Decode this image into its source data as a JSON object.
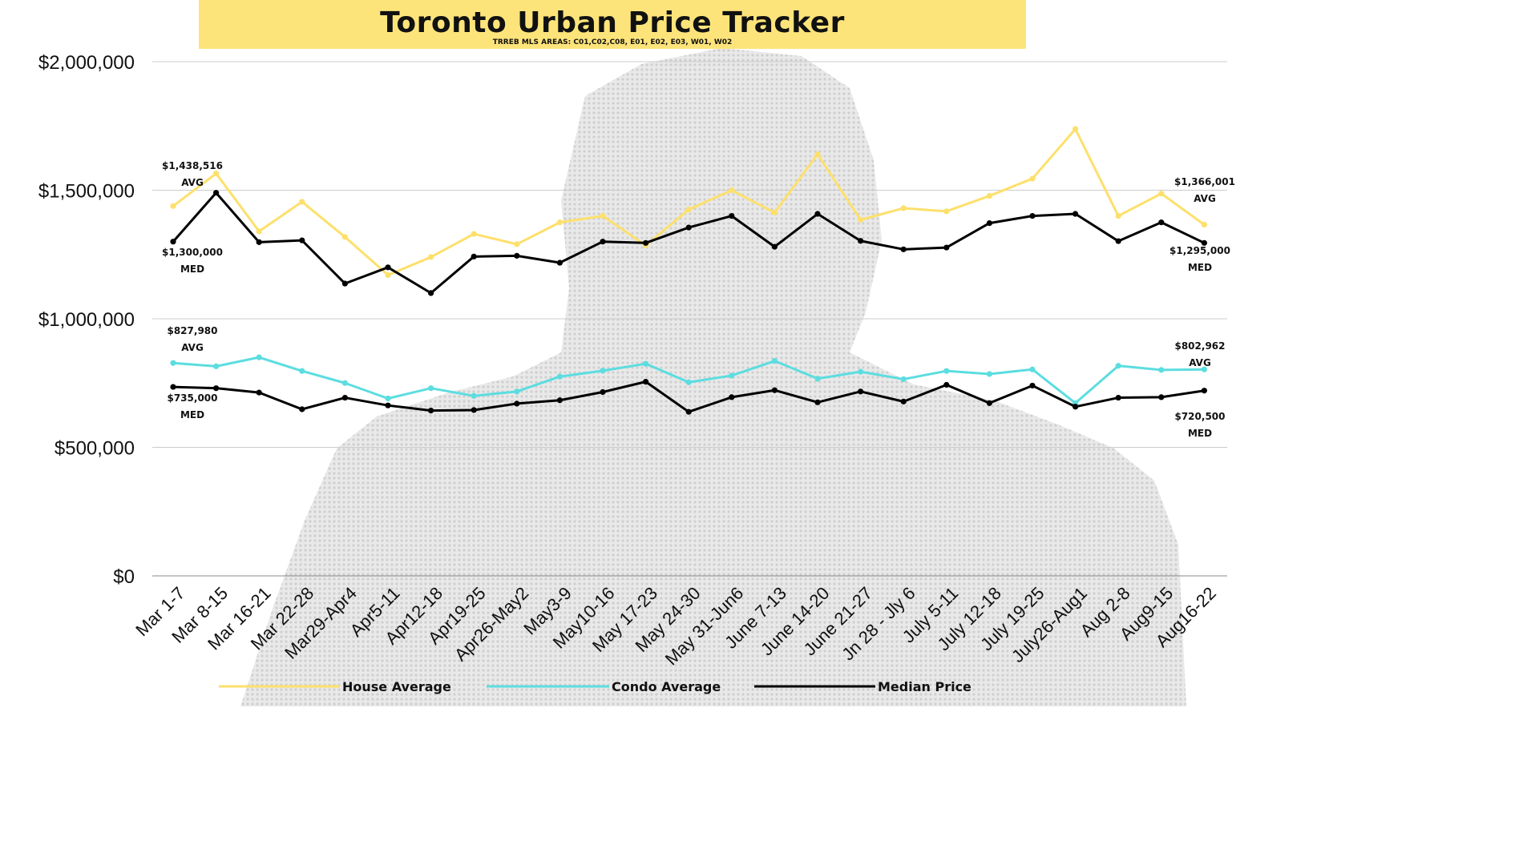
{
  "title": "Toronto Urban Price Tracker",
  "subtitle": "TRREB MLS AREAS: C01,C02,C08, E01, E02, E03, W01, W02",
  "chart_data": {
    "type": "line",
    "ylim": [
      0,
      2000000
    ],
    "yticks": [
      0,
      500000,
      1000000,
      1500000,
      2000000
    ],
    "ytick_labels": [
      "$0",
      "$500,000",
      "$1,000,000",
      "$1,500,000",
      "$2,000,000"
    ],
    "grid": true,
    "legend_position": "bottom",
    "categories": [
      "Mar 1-7",
      "Mar 8-15",
      "Mar 16-21",
      "Mar 22-28",
      "Mar29-Apr4",
      "Apr5-11",
      "Apr12-18",
      "Apr19-25",
      "Apr26-May2",
      "May3-9",
      "May10-16",
      "May 17-23",
      "May 24-30",
      "May 31-Jun6",
      "June 7-13",
      "June 14-20",
      "June 21-27",
      "Jn 28 - Jly 6",
      "July 5-11",
      "July 12-18",
      "July 19-25",
      "July26-Aug1",
      "Aug 2-8",
      "Aug9-15",
      "Aug16-22"
    ],
    "series": [
      {
        "name": "House Average",
        "color": "#fde06c",
        "values": [
          1438516,
          1565000,
          1340000,
          1455000,
          1318000,
          1170000,
          1240000,
          1330000,
          1290000,
          1375000,
          1400000,
          1285000,
          1425000,
          1500000,
          1413000,
          1640000,
          1385000,
          1430000,
          1418000,
          1478000,
          1545000,
          1738000,
          1400000,
          1487000,
          1366001
        ]
      },
      {
        "name": "Condo Average",
        "color": "#5cdde0",
        "values": [
          827980,
          815000,
          850000,
          797000,
          750000,
          690000,
          730000,
          700000,
          717000,
          775000,
          798000,
          825000,
          753000,
          779000,
          836000,
          767000,
          794000,
          765000,
          797000,
          785000,
          803000,
          672000,
          817000,
          801000,
          802962
        ]
      },
      {
        "name": "Median Price",
        "color": "#000000",
        "values": [
          1300000,
          1490000,
          1298000,
          1305000,
          1137000,
          1200000,
          1100000,
          1242000,
          1245000,
          1218000,
          1300000,
          1295000,
          1355000,
          1400000,
          1280000,
          1408000,
          1303000,
          1270000,
          1277000,
          1372000,
          1400000,
          1408000,
          1302000,
          1375000,
          1295000
        ]
      },
      {
        "name": "",
        "color": "#000000",
        "values": [
          735000,
          730000,
          713000,
          648000,
          693000,
          663000,
          643000,
          645000,
          670000,
          683000,
          715000,
          755000,
          638000,
          695000,
          722000,
          675000,
          717000,
          678000,
          743000,
          672000,
          740000,
          658000,
          693000,
          695000,
          720500
        ]
      }
    ],
    "legend": [
      "House Average",
      "Condo Average",
      "Median Price"
    ],
    "annotations": [
      {
        "value": "$1,438,516",
        "tag": "AVG"
      },
      {
        "value": "$1,300,000",
        "tag": "MED"
      },
      {
        "value": "$827,980",
        "tag": "AVG"
      },
      {
        "value": "$735,000",
        "tag": "MED"
      },
      {
        "value": "$1,366,001",
        "tag": "AVG"
      },
      {
        "value": "$1,295,000",
        "tag": "MED"
      },
      {
        "value": "$802,962",
        "tag": "AVG"
      },
      {
        "value": "$720,500",
        "tag": "MED"
      }
    ]
  }
}
